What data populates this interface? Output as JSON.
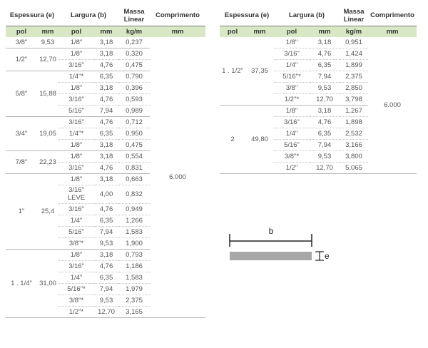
{
  "headers": {
    "espessura": "Espessura (e)",
    "largura": "Largura (b)",
    "massa": [
      "Massa",
      "Linear"
    ],
    "comprimento": "Comprimento",
    "pol": "pol",
    "mm": "mm",
    "kgm": "kg/m"
  },
  "left_table": {
    "comprimento": "6.000",
    "groups": [
      {
        "pol": "3/8\"",
        "mm": "9,53",
        "rows": [
          [
            "1/8\"",
            "3,18",
            "0,237"
          ]
        ]
      },
      {
        "pol": "1/2\"",
        "mm": "12,70",
        "rows": [
          [
            "1/8\"",
            "3,18",
            "0,320"
          ],
          [
            "3/16\"",
            "4,76",
            "0,475"
          ]
        ]
      },
      {
        "pol": "5/8\"",
        "mm": "15,88",
        "rows": [
          [
            "1/4\"*",
            "6,35",
            "0,790"
          ],
          [
            "1/8\"",
            "3,18",
            "0,396"
          ],
          [
            "3/16\"",
            "4,76",
            "0,593"
          ],
          [
            "5/16\"",
            "7,94",
            "0,989"
          ]
        ]
      },
      {
        "pol": "3/4\"",
        "mm": "19,05",
        "rows": [
          [
            "3/16\"",
            "4,76",
            "0,712"
          ],
          [
            "1/4\"*",
            "6,35",
            "0,950"
          ],
          [
            "1/8\"",
            "3,18",
            "0,475"
          ]
        ]
      },
      {
        "pol": "7/8\"",
        "mm": "22,23",
        "rows": [
          [
            "1/8\"",
            "3,18",
            "0,554"
          ],
          [
            "3/16\"",
            "4,76",
            "0,831"
          ]
        ]
      },
      {
        "pol": "1\"",
        "mm": "25,4",
        "rows": [
          [
            "1/8\"",
            "3,18",
            "0,663"
          ],
          [
            "3/16\" LEVE",
            "4,00",
            "0,832"
          ],
          [
            "3/16\"",
            "4,76",
            "0,949"
          ],
          [
            "1/4\"",
            "6,35",
            "1,266"
          ],
          [
            "5/16\"",
            "7,94",
            "1,583"
          ],
          [
            "3/8\"*",
            "9,53",
            "1,900"
          ]
        ]
      },
      {
        "pol": "1 . 1/4\"",
        "mm": "31,00",
        "rows": [
          [
            "1/8\"",
            "3,18",
            "0,793"
          ],
          [
            "3/16\"",
            "4,76",
            "1,186"
          ],
          [
            "1/4\"",
            "6,35",
            "1,583"
          ],
          [
            "5/16\"*",
            "7,94",
            "1,979"
          ],
          [
            "3/8\"*",
            "9,53",
            "2,375"
          ],
          [
            "1/2\"*",
            "12,70",
            "3,165"
          ]
        ]
      }
    ]
  },
  "right_table": {
    "comprimento": "6.000",
    "groups": [
      {
        "pol": "1 . 1/2\"",
        "mm": "37,35",
        "rows": [
          [
            "1/8\"",
            "3,18",
            "0,951"
          ],
          [
            "3/16\"",
            "4,76",
            "1,424"
          ],
          [
            "1/4\"",
            "6,35",
            "1,899"
          ],
          [
            "5/16\"*",
            "7,94",
            "2,375"
          ],
          [
            "3/8\"",
            "9,53",
            "2,850"
          ],
          [
            "1/2\"*",
            "12,70",
            "3,798"
          ]
        ]
      },
      {
        "pol": "2",
        "mm": "49,80",
        "rows": [
          [
            "1/8\"",
            "3,18",
            "1,267"
          ],
          [
            "3/16\"",
            "4,76",
            "1,898"
          ],
          [
            "1/4\"",
            "6,35",
            "2,532"
          ],
          [
            "5/16\"",
            "7,94",
            "3,166"
          ],
          [
            "3/8\"*",
            "9,53",
            "3,800"
          ],
          [
            "1/2\"",
            "12,70",
            "5,065"
          ]
        ]
      }
    ]
  },
  "diagram": {
    "label_b": "b",
    "label_e": "e",
    "bar_color": "#a8a8a8"
  }
}
